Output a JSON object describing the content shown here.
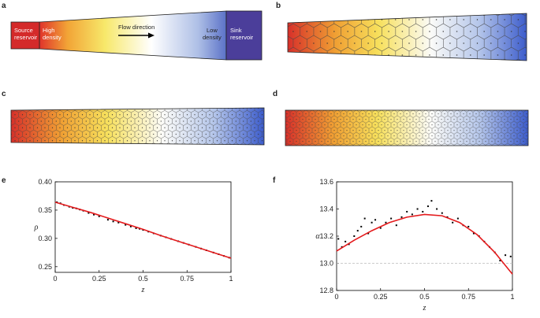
{
  "panels": {
    "labels": [
      "a",
      "b",
      "c",
      "d",
      "e",
      "f"
    ],
    "diagram": {
      "source_reservoir": [
        "Source",
        "reservoir"
      ],
      "high_density": [
        "High",
        "density"
      ],
      "flow_direction": "Flow direction",
      "low_density": [
        "Low",
        "density"
      ],
      "sink_reservoir": [
        "Sink",
        "reservoir"
      ]
    }
  },
  "chart_data": [
    {
      "type": "scatter",
      "xlabel": "z",
      "ylabel": "ρ",
      "xlim": [
        0,
        1
      ],
      "xticks": [
        0,
        0.25,
        0.5,
        0.75,
        1
      ],
      "ylim": [
        0.24,
        0.4
      ],
      "yticks": [
        0.25,
        {
          "value": 0.3,
          "label": "0.30"
        },
        0.35,
        {
          "value": 0.4,
          "label": "0.40"
        }
      ],
      "series": [
        {
          "type": "scatter",
          "color": "#000000",
          "x": [
            0.01,
            0.03,
            0.05,
            0.08,
            0.1,
            0.12,
            0.14,
            0.16,
            0.19,
            0.22,
            0.25,
            0.3,
            0.33,
            0.36,
            0.4,
            0.43,
            0.46,
            0.48,
            0.5,
            0.53,
            0.56,
            0.6,
            0.63,
            0.66,
            0.7,
            0.73,
            0.76,
            0.8,
            0.83,
            0.86,
            0.9,
            0.93,
            0.96,
            0.99
          ],
          "values": [
            0.364,
            0.362,
            0.359,
            0.356,
            0.354,
            0.353,
            0.351,
            0.349,
            0.345,
            0.342,
            0.339,
            0.333,
            0.33,
            0.328,
            0.324,
            0.321,
            0.318,
            0.317,
            0.315,
            0.312,
            0.309,
            0.305,
            0.302,
            0.299,
            0.295,
            0.292,
            0.289,
            0.285,
            0.282,
            0.279,
            0.275,
            0.272,
            0.269,
            0.266
          ]
        },
        {
          "type": "line",
          "color": "#e41a1c",
          "x": [
            0,
            0.1,
            0.2,
            0.3,
            0.4,
            0.5,
            0.6,
            0.7,
            0.8,
            0.9,
            1
          ],
          "values": [
            0.364,
            0.355,
            0.346,
            0.336,
            0.326,
            0.316,
            0.305,
            0.295,
            0.285,
            0.275,
            0.265
          ]
        }
      ]
    },
    {
      "type": "scatter",
      "xlabel": "z",
      "ylabel": "α",
      "xlim": [
        0,
        1
      ],
      "xticks": [
        0,
        0.25,
        0.5,
        0.75,
        1
      ],
      "ylim": [
        12.8,
        13.6
      ],
      "yticks": [
        12.8,
        {
          "value": 13.0,
          "label": "13.0"
        },
        13.2,
        13.4,
        13.6
      ],
      "hline": {
        "value": 13.0,
        "color": "#bbbbbb",
        "dashed": true
      },
      "series": [
        {
          "type": "scatter",
          "color": "#000000",
          "x": [
            0.01,
            0.03,
            0.05,
            0.07,
            0.1,
            0.12,
            0.14,
            0.16,
            0.18,
            0.2,
            0.22,
            0.25,
            0.28,
            0.31,
            0.34,
            0.37,
            0.4,
            0.43,
            0.46,
            0.49,
            0.52,
            0.54,
            0.57,
            0.6,
            0.63,
            0.66,
            0.69,
            0.72,
            0.75,
            0.78,
            0.81,
            0.84,
            0.87,
            0.9,
            0.93,
            0.96,
            0.99
          ],
          "values": [
            13.18,
            13.12,
            13.16,
            13.14,
            13.2,
            13.24,
            13.27,
            13.33,
            13.22,
            13.3,
            13.32,
            13.26,
            13.3,
            13.33,
            13.28,
            13.34,
            13.38,
            13.36,
            13.4,
            13.38,
            13.42,
            13.46,
            13.4,
            13.37,
            13.34,
            13.3,
            13.33,
            13.28,
            13.27,
            13.22,
            13.2,
            13.16,
            13.12,
            13.08,
            13.02,
            13.06,
            13.05
          ]
        },
        {
          "type": "line",
          "color": "#e41a1c",
          "x": [
            0,
            0.1,
            0.2,
            0.3,
            0.4,
            0.5,
            0.6,
            0.7,
            0.8,
            0.9,
            1
          ],
          "values": [
            13.09,
            13.17,
            13.24,
            13.3,
            13.34,
            13.36,
            13.35,
            13.3,
            13.21,
            13.08,
            12.92
          ]
        }
      ]
    }
  ]
}
